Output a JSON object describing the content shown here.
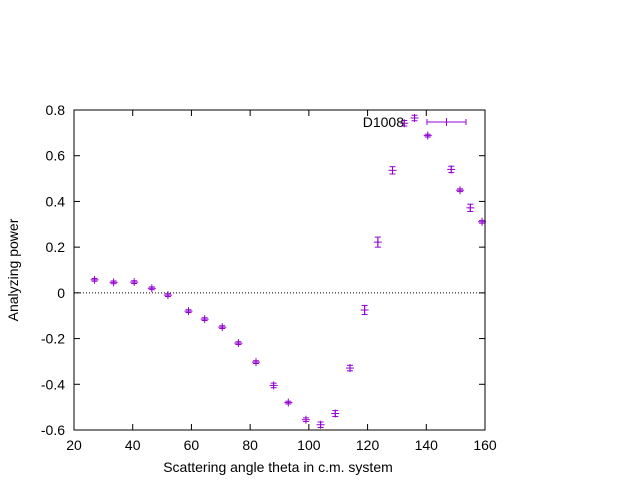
{
  "chart_data": {
    "type": "scatter",
    "title": "",
    "xlabel": "Scattering angle theta in c.m. system",
    "ylabel": "Analyzing power",
    "xlim": [
      20,
      160
    ],
    "ylim": [
      -0.6,
      0.8
    ],
    "x_ticks": [
      "20",
      "40",
      "60",
      "80",
      "100",
      "120",
      "140",
      "160"
    ],
    "y_ticks": [
      "-0.6",
      "-0.4",
      "-0.2",
      "0",
      "0.2",
      "0.4",
      "0.6",
      "0.8"
    ],
    "x_tick_values": [
      20,
      40,
      60,
      80,
      100,
      120,
      140,
      160
    ],
    "y_tick_values": [
      -0.6,
      -0.4,
      -0.2,
      0,
      0.2,
      0.4,
      0.6,
      0.8
    ],
    "grid": false,
    "zero_line": true,
    "legend_position": "top-right",
    "series": [
      {
        "name": "D1008",
        "color": "#9400d3",
        "points": [
          {
            "x": 27.0,
            "y": 0.057,
            "err": 0.006
          },
          {
            "x": 33.5,
            "y": 0.046,
            "err": 0.006
          },
          {
            "x": 40.5,
            "y": 0.047,
            "err": 0.006
          },
          {
            "x": 46.5,
            "y": 0.02,
            "err": 0.006
          },
          {
            "x": 52.0,
            "y": -0.01,
            "err": 0.006
          },
          {
            "x": 59.0,
            "y": -0.08,
            "err": 0.006
          },
          {
            "x": 64.5,
            "y": -0.115,
            "err": 0.006
          },
          {
            "x": 70.5,
            "y": -0.15,
            "err": 0.006
          },
          {
            "x": 76.0,
            "y": -0.22,
            "err": 0.006
          },
          {
            "x": 82.0,
            "y": -0.303,
            "err": 0.006
          },
          {
            "x": 88.0,
            "y": -0.405,
            "err": 0.01
          },
          {
            "x": 93.0,
            "y": -0.48,
            "err": 0.006
          },
          {
            "x": 99.0,
            "y": -0.555,
            "err": 0.008
          },
          {
            "x": 104.0,
            "y": -0.577,
            "err": 0.012
          },
          {
            "x": 109.0,
            "y": -0.528,
            "err": 0.013
          },
          {
            "x": 114.0,
            "y": -0.329,
            "err": 0.012
          },
          {
            "x": 119.0,
            "y": -0.075,
            "err": 0.02
          },
          {
            "x": 123.5,
            "y": 0.222,
            "err": 0.022
          },
          {
            "x": 128.5,
            "y": 0.536,
            "err": 0.016
          },
          {
            "x": 132.5,
            "y": 0.742,
            "err": 0.012
          },
          {
            "x": 136.0,
            "y": 0.765,
            "err": 0.012
          },
          {
            "x": 140.5,
            "y": 0.688,
            "err": 0.006
          },
          {
            "x": 148.5,
            "y": 0.54,
            "err": 0.014
          },
          {
            "x": 151.5,
            "y": 0.449,
            "err": 0.006
          },
          {
            "x": 155.0,
            "y": 0.372,
            "err": 0.016
          },
          {
            "x": 159.0,
            "y": 0.311,
            "err": 0.006
          }
        ]
      }
    ]
  }
}
